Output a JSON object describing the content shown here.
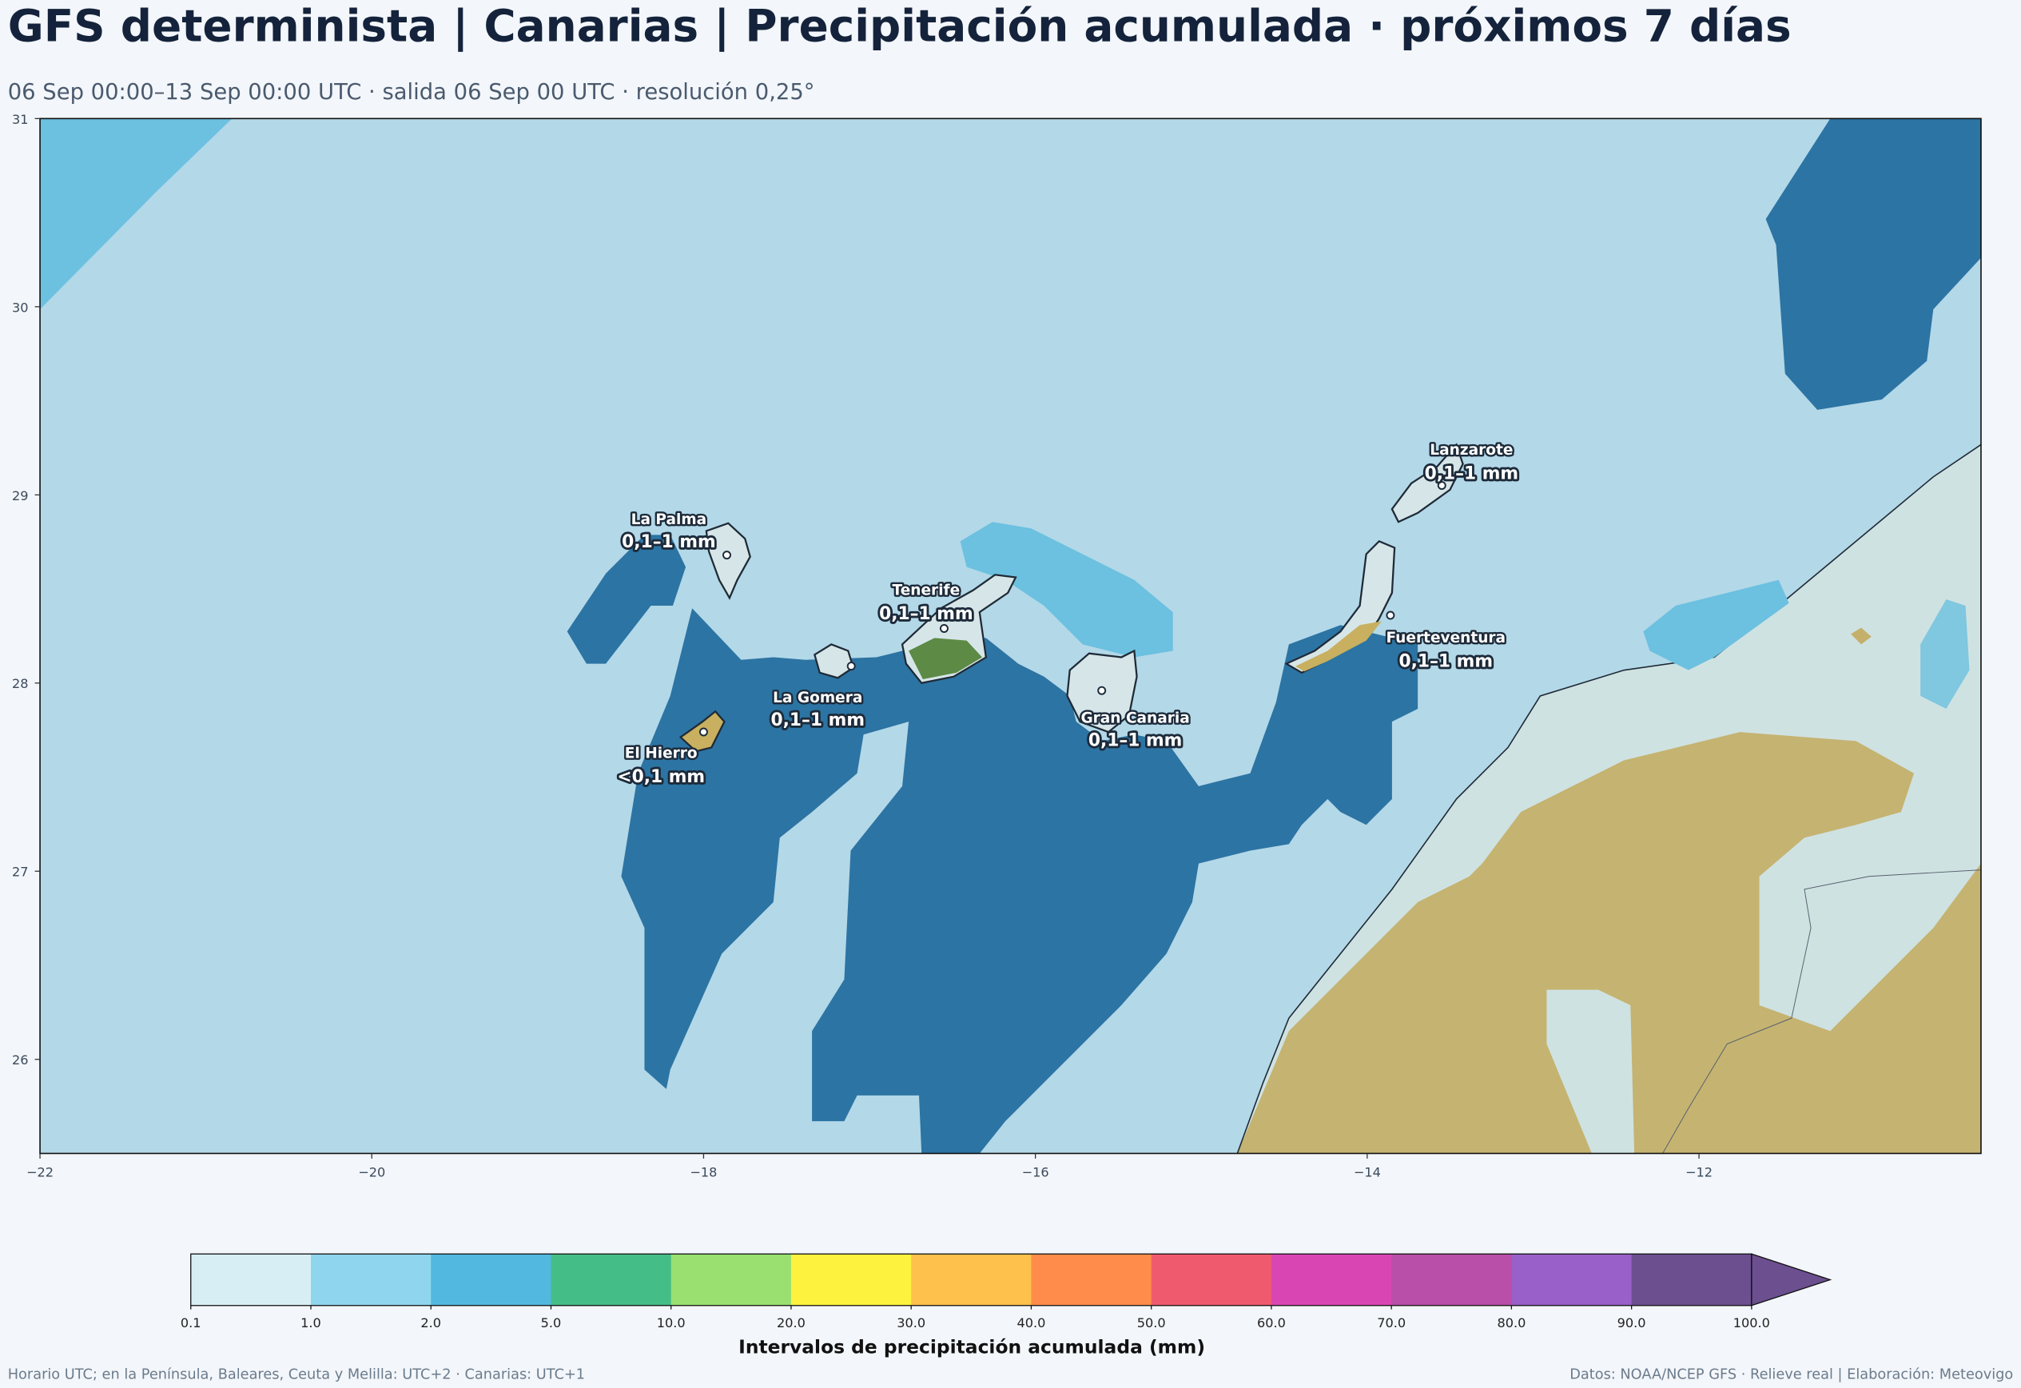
{
  "title": "GFS determinista | Canarias | Precipitación acumulada · próximos 7 días",
  "subtitle": "06 Sep 00:00–13 Sep 00:00 UTC · salida 06 Sep 00 UTC · resolución 0,25°",
  "map": {
    "xlim": [
      -22,
      -10.3
    ],
    "ylim": [
      25.5,
      31
    ],
    "xticks": [
      {
        "value": -22,
        "label": "−22"
      },
      {
        "value": -20,
        "label": "−20"
      },
      {
        "value": -18,
        "label": "−18"
      },
      {
        "value": -16,
        "label": "−16"
      },
      {
        "value": -14,
        "label": "−14"
      },
      {
        "value": -12,
        "label": "−12"
      }
    ],
    "yticks": [
      26,
      27,
      28,
      29,
      30,
      31
    ],
    "places": [
      {
        "name": "La Palma",
        "label": "0,1–1 mm",
        "lon": -17.86,
        "lat": 28.68
      },
      {
        "name": "Tenerife",
        "label": "0,1–1 mm",
        "lon": -16.55,
        "lat": 28.29
      },
      {
        "name": "La Gomera",
        "label": "0,1–1 mm",
        "lon": -17.11,
        "lat": 28.09
      },
      {
        "name": "El Hierro",
        "label": "<0,1 mm",
        "lon": -18.0,
        "lat": 27.74
      },
      {
        "name": "Gran Canaria",
        "label": "0,1–1 mm",
        "lon": -15.6,
        "lat": 27.96
      },
      {
        "name": "Fuerteventura",
        "label": "0,1–1 mm",
        "lon": -13.86,
        "lat": 28.36
      },
      {
        "name": "Lanzarote",
        "label": "0,1–1 mm",
        "lon": -13.55,
        "lat": 29.05
      }
    ]
  },
  "colorbar": {
    "label": "Intervalos de precipitación acumulada (mm)",
    "levels": [
      0.1,
      {
        "value": 1,
        "label": "1.0"
      },
      {
        "value": 2,
        "label": "2.0"
      },
      {
        "value": 5,
        "label": "5.0"
      },
      {
        "value": 10,
        "label": "10.0"
      },
      {
        "value": 20,
        "label": "20.0"
      },
      {
        "value": 30,
        "label": "30.0"
      },
      {
        "value": 40,
        "label": "40.0"
      },
      {
        "value": 50,
        "label": "50.0"
      },
      {
        "value": 60,
        "label": "60.0"
      },
      {
        "value": 70,
        "label": "70.0"
      },
      {
        "value": 80,
        "label": "80.0"
      },
      {
        "value": 90,
        "label": "90.0"
      },
      {
        "value": 100,
        "label": "100.0"
      }
    ],
    "colors": [
      "#d8eef5",
      "#90d5ee",
      "#52b8e0",
      "#45bd87",
      "#9ae070",
      "#fdf23e",
      "#fec14c",
      "#ff8c4b",
      "#f05a6e",
      "#d946b4",
      "#b94fa8",
      "#9860c8",
      "#6b4f8f"
    ]
  },
  "footer": {
    "left": "Horario UTC; en la Península, Baleares, Ceuta y Melilla: UTC+2 · Canarias: UTC+1",
    "right": "Datos: NOAA/NCEP GFS · Relieve real | Elaboración: Meteovigo"
  }
}
